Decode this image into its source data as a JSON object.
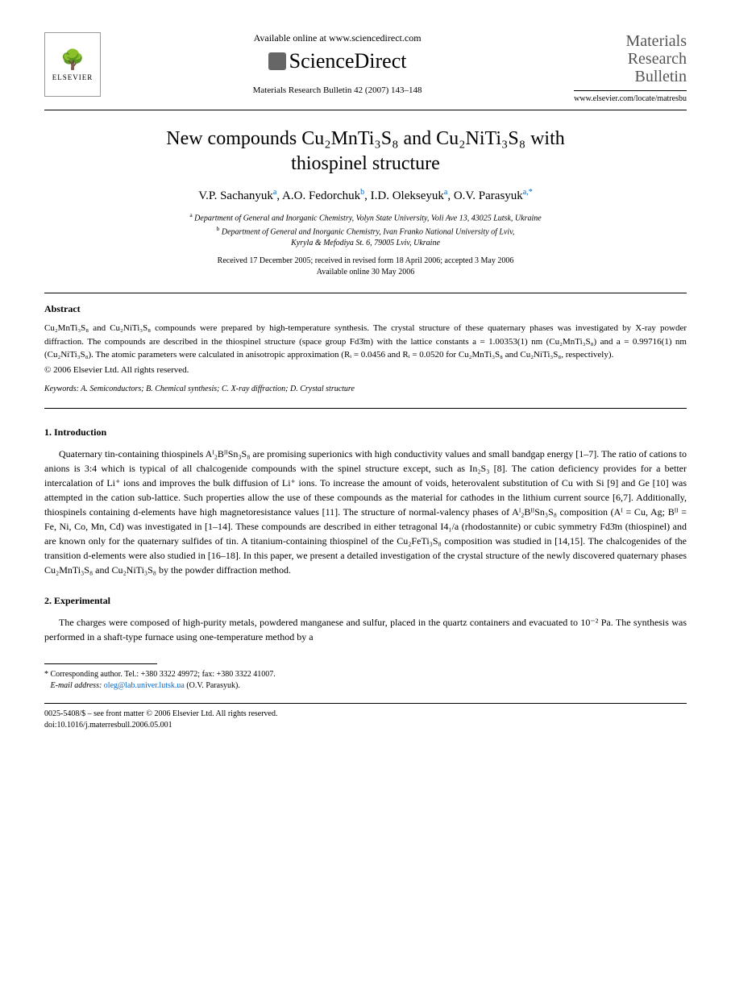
{
  "header": {
    "elsevier_label": "ELSEVIER",
    "available_online": "Available online at www.sciencedirect.com",
    "sciencedirect": "ScienceDirect",
    "journal_ref": "Materials Research Bulletin 42 (2007) 143–148",
    "journal_title_l1": "Materials",
    "journal_title_l2": "Research",
    "journal_title_l3": "Bulletin",
    "journal_url": "www.elsevier.com/locate/matresbu"
  },
  "title": {
    "line1": "New compounds Cu₂MnTi₃S₈ and Cu₂NiTi₃S₈ with",
    "line2": "thiospinel structure"
  },
  "authors": {
    "a1": "V.P. Sachanyuk",
    "a1_aff": "a",
    "a2": "A.O. Fedorchuk",
    "a2_aff": "b",
    "a3": "I.D. Olekseyuk",
    "a3_aff": "a",
    "a4": "O.V. Parasyuk",
    "a4_aff": "a,",
    "a4_star": "*"
  },
  "affiliations": {
    "a_sup": "a",
    "a_text": "Department of General and Inorganic Chemistry, Volyn State University, Voli Ave 13, 43025 Lutsk, Ukraine",
    "b_sup": "b",
    "b_text_l1": "Department of General and Inorganic Chemistry, Ivan Franko National University of Lviv,",
    "b_text_l2": "Kyryla & Mefodiya St. 6, 79005 Lviv, Ukraine"
  },
  "dates": {
    "received": "Received 17 December 2005; received in revised form 18 April 2006; accepted 3 May 2006",
    "online": "Available online 30 May 2006"
  },
  "abstract": {
    "heading": "Abstract",
    "text": "Cu₂MnTi₃S₈ and Cu₂NiTi₃S₈ compounds were prepared by high-temperature synthesis. The crystal structure of these quaternary phases was investigated by X-ray powder diffraction. The compounds are described in the thiospinel structure (space group Fd3̄m) with the lattice constants a = 1.00353(1) nm (Cu₂MnTi₃S₈) and a = 0.99716(1) nm (Cu₂NiTi₃S₈). The atomic parameters were calculated in anisotropic approximation (Rᵢ = 0.0456 and Rᵢ = 0.0520 for Cu₂MnTi₃S₈ and Cu₂NiTi₃S₈, respectively).",
    "copyright": "© 2006 Elsevier Ltd. All rights reserved."
  },
  "keywords": {
    "label": "Keywords:",
    "text": "A. Semiconductors; B. Chemical synthesis; C. X-ray diffraction; D. Crystal structure"
  },
  "sections": {
    "intro_heading": "1. Introduction",
    "intro_text": "Quaternary tin-containing thiospinels Aᴵ₂BᴵᴵSn₃S₈ are promising superionics with high conductivity values and small bandgap energy [1–7]. The ratio of cations to anions is 3:4 which is typical of all chalcogenide compounds with the spinel structure except, such as In₂S₃ [8]. The cation deficiency provides for a better intercalation of Li⁺ ions and improves the bulk diffusion of Li⁺ ions. To increase the amount of voids, heterovalent substitution of Cu with Si [9] and Ge [10] was attempted in the cation sub-lattice. Such properties allow the use of these compounds as the material for cathodes in the lithium current source [6,7]. Additionally, thiospinels containing d-elements have high magnetoresistance values [11]. The structure of normal-valency phases of Aᴵ₂BᴵᴵSn₃S₈ composition (Aᴵ = Cu, Ag; Bᴵᴵ = Fe, Ni, Co, Mn, Cd) was investigated in [1–14]. These compounds are described in either tetragonal I4₁/a (rhodostannite) or cubic symmetry Fd3̄m (thiospinel) and are known only for the quaternary sulfides of tin. A titanium-containing thiospinel of the Cu₂FeTi₃S₈ composition was studied in [14,15]. The chalcogenides of the transition d-elements were also studied in [16–18]. In this paper, we present a detailed investigation of the crystal structure of the newly discovered quaternary phases Cu₂MnTi₃S₈ and Cu₂NiTi₃S₈ by the powder diffraction method.",
    "exp_heading": "2. Experimental",
    "exp_text": "The charges were composed of high-purity metals, powdered manganese and sulfur, placed in the quartz containers and evacuated to 10⁻² Pa. The synthesis was performed in a shaft-type furnace using one-temperature method by a"
  },
  "footnote": {
    "corr": "* Corresponding author. Tel.: +380 3322 49972; fax: +380 3322 41007.",
    "email_label": "E-mail address:",
    "email": "oleg@lab.univer.lutsk.ua",
    "email_person": "(O.V. Parasyuk)."
  },
  "footer": {
    "line1": "0025-5408/$ – see front matter © 2006 Elsevier Ltd. All rights reserved.",
    "line2": "doi:10.1016/j.materresbull.2006.05.001"
  },
  "colors": {
    "link": "#0066cc",
    "text": "#000000",
    "journal_title": "#555555"
  }
}
